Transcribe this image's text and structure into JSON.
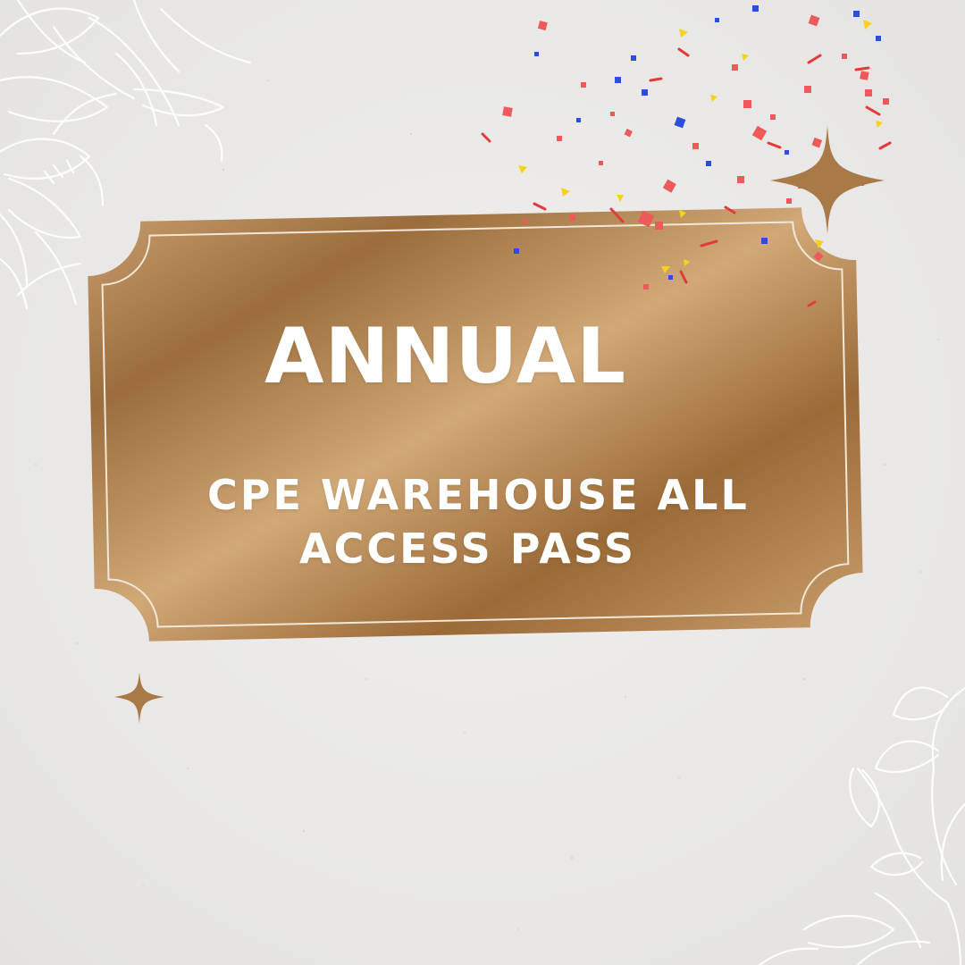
{
  "pass": {
    "headline": "ANNUAL",
    "subtitle_line_1": "CPE WAREHOUSE ALL",
    "subtitle_line_2": "ACCESS PASS"
  },
  "colors": {
    "background": "#ebeae8",
    "gold_dark": "#9a6c3a",
    "gold_light": "#d1a877",
    "text": "#ffffff",
    "confetti_red": "#ee5a5a",
    "confetti_blue": "#2c4fd9",
    "confetti_yellow": "#f5d21b"
  },
  "icons": [
    "floral-line-art-icon",
    "sparkle-star-icon",
    "confetti-icon"
  ]
}
